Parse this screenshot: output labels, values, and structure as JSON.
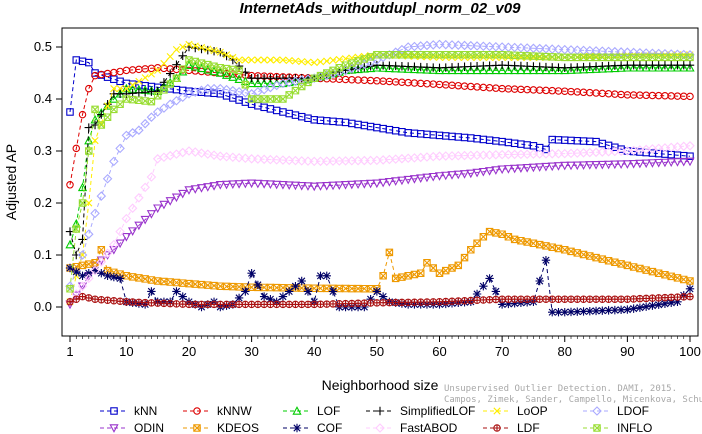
{
  "chart_data": {
    "type": "line",
    "title": "InternetAds_withoutdupl_norm_02_v09",
    "xlabel": "Neighborhood size",
    "ylabel": "Adjusted AP",
    "xlim": [
      1,
      100
    ],
    "ylim": [
      -0.03,
      0.52
    ],
    "xticks": [
      1,
      10,
      20,
      30,
      40,
      50,
      60,
      70,
      80,
      90,
      100
    ],
    "yticks": [
      0.0,
      0.1,
      0.2,
      0.3,
      0.4,
      0.5
    ],
    "ytick_labels": [
      "0.0",
      "0.1",
      "0.2",
      "0.3",
      "0.4",
      "0.5"
    ],
    "grid": false,
    "legend_position": "bottom",
    "series": [
      {
        "name": "kNN",
        "color": "#0000cc",
        "marker": "square",
        "dash": "4,3",
        "points": [
          [
            1,
            0.375
          ],
          [
            2,
            0.475
          ],
          [
            4,
            0.47
          ],
          [
            5,
            0.45
          ],
          [
            10,
            0.43
          ],
          [
            20,
            0.415
          ],
          [
            25,
            0.41
          ],
          [
            30,
            0.39
          ],
          [
            35,
            0.375
          ],
          [
            40,
            0.36
          ],
          [
            45,
            0.355
          ],
          [
            50,
            0.345
          ],
          [
            55,
            0.335
          ],
          [
            60,
            0.33
          ],
          [
            65,
            0.325
          ],
          [
            70,
            0.318
          ],
          [
            75,
            0.31
          ],
          [
            77,
            0.303
          ],
          [
            78,
            0.322
          ],
          [
            85,
            0.318
          ],
          [
            90,
            0.3
          ],
          [
            100,
            0.29
          ]
        ]
      },
      {
        "name": "kNNW",
        "color": "#dd0000",
        "marker": "circle",
        "dash": "4,3",
        "points": [
          [
            1,
            0.235
          ],
          [
            2,
            0.305
          ],
          [
            3,
            0.37
          ],
          [
            4,
            0.42
          ],
          [
            5,
            0.445
          ],
          [
            10,
            0.455
          ],
          [
            15,
            0.46
          ],
          [
            20,
            0.455
          ],
          [
            30,
            0.445
          ],
          [
            40,
            0.44
          ],
          [
            50,
            0.435
          ],
          [
            60,
            0.428
          ],
          [
            70,
            0.42
          ],
          [
            80,
            0.415
          ],
          [
            90,
            0.408
          ],
          [
            100,
            0.405
          ]
        ]
      },
      {
        "name": "LOF",
        "color": "#00cc00",
        "marker": "triangle-up",
        "dash": "4,3",
        "points": [
          [
            1,
            0.12
          ],
          [
            2,
            0.16
          ],
          [
            3,
            0.23
          ],
          [
            4,
            0.32
          ],
          [
            5,
            0.36
          ],
          [
            8,
            0.4
          ],
          [
            10,
            0.42
          ],
          [
            15,
            0.415
          ],
          [
            18,
            0.44
          ],
          [
            20,
            0.465
          ],
          [
            25,
            0.45
          ],
          [
            30,
            0.43
          ],
          [
            35,
            0.43
          ],
          [
            40,
            0.44
          ],
          [
            45,
            0.455
          ],
          [
            50,
            0.46
          ],
          [
            60,
            0.455
          ],
          [
            70,
            0.455
          ],
          [
            80,
            0.455
          ],
          [
            90,
            0.46
          ],
          [
            100,
            0.46
          ]
        ]
      },
      {
        "name": "SimplifiedLOF",
        "color": "#000000",
        "marker": "plus",
        "dash": "4,3",
        "points": [
          [
            1,
            0.145
          ],
          [
            2,
            0.1
          ],
          [
            3,
            0.13
          ],
          [
            4,
            0.345
          ],
          [
            5,
            0.35
          ],
          [
            8,
            0.41
          ],
          [
            10,
            0.41
          ],
          [
            15,
            0.415
          ],
          [
            20,
            0.5
          ],
          [
            25,
            0.49
          ],
          [
            27,
            0.475
          ],
          [
            30,
            0.44
          ],
          [
            40,
            0.44
          ],
          [
            45,
            0.455
          ],
          [
            50,
            0.465
          ],
          [
            60,
            0.46
          ],
          [
            70,
            0.465
          ],
          [
            80,
            0.46
          ],
          [
            90,
            0.465
          ],
          [
            100,
            0.465
          ]
        ]
      },
      {
        "name": "LoOP",
        "color": "#ffee00",
        "marker": "x",
        "dash": "4,3",
        "points": [
          [
            1,
            0.01
          ],
          [
            2,
            0.06
          ],
          [
            3,
            0.1
          ],
          [
            4,
            0.2
          ],
          [
            5,
            0.32
          ],
          [
            8,
            0.42
          ],
          [
            10,
            0.42
          ],
          [
            15,
            0.455
          ],
          [
            18,
            0.495
          ],
          [
            20,
            0.505
          ],
          [
            25,
            0.49
          ],
          [
            28,
            0.475
          ],
          [
            35,
            0.475
          ],
          [
            40,
            0.47
          ],
          [
            50,
            0.485
          ],
          [
            60,
            0.48
          ],
          [
            70,
            0.48
          ],
          [
            80,
            0.48
          ],
          [
            90,
            0.485
          ],
          [
            100,
            0.485
          ]
        ]
      },
      {
        "name": "LDOF",
        "color": "#aaaaff",
        "marker": "diamond",
        "dash": "4,3",
        "points": [
          [
            1,
            0.04
          ],
          [
            3,
            0.1
          ],
          [
            5,
            0.18
          ],
          [
            8,
            0.28
          ],
          [
            10,
            0.33
          ],
          [
            12,
            0.34
          ],
          [
            14,
            0.365
          ],
          [
            15,
            0.375
          ],
          [
            17,
            0.39
          ],
          [
            20,
            0.41
          ],
          [
            23,
            0.42
          ],
          [
            25,
            0.42
          ],
          [
            30,
            0.41
          ],
          [
            35,
            0.43
          ],
          [
            40,
            0.44
          ],
          [
            45,
            0.455
          ],
          [
            50,
            0.475
          ],
          [
            55,
            0.5
          ],
          [
            60,
            0.505
          ],
          [
            70,
            0.5
          ],
          [
            80,
            0.495
          ],
          [
            90,
            0.49
          ],
          [
            100,
            0.485
          ]
        ]
      },
      {
        "name": "ODIN",
        "color": "#9933cc",
        "marker": "triangle-down",
        "dash": "4,3",
        "points": [
          [
            1,
            0.005
          ],
          [
            3,
            0.04
          ],
          [
            5,
            0.08
          ],
          [
            8,
            0.11
          ],
          [
            10,
            0.135
          ],
          [
            15,
            0.19
          ],
          [
            20,
            0.225
          ],
          [
            25,
            0.235
          ],
          [
            30,
            0.238
          ],
          [
            35,
            0.235
          ],
          [
            40,
            0.232
          ],
          [
            45,
            0.235
          ],
          [
            50,
            0.238
          ],
          [
            55,
            0.245
          ],
          [
            60,
            0.252
          ],
          [
            65,
            0.257
          ],
          [
            70,
            0.265
          ],
          [
            80,
            0.272
          ],
          [
            90,
            0.275
          ],
          [
            100,
            0.28
          ]
        ]
      },
      {
        "name": "KDEOS",
        "color": "#ee9900",
        "marker": "square-x",
        "dash": "4,3",
        "points": [
          [
            1,
            0.075
          ],
          [
            5,
            0.085
          ],
          [
            6,
            0.11
          ],
          [
            7,
            0.07
          ],
          [
            10,
            0.06
          ],
          [
            15,
            0.05
          ],
          [
            20,
            0.045
          ],
          [
            25,
            0.04
          ],
          [
            30,
            0.038
          ],
          [
            40,
            0.036
          ],
          [
            50,
            0.035
          ],
          [
            51,
            0.06
          ],
          [
            52,
            0.105
          ],
          [
            53,
            0.055
          ],
          [
            55,
            0.06
          ],
          [
            57,
            0.065
          ],
          [
            58,
            0.085
          ],
          [
            60,
            0.065
          ],
          [
            63,
            0.08
          ],
          [
            65,
            0.11
          ],
          [
            67,
            0.135
          ],
          [
            68,
            0.145
          ],
          [
            70,
            0.14
          ],
          [
            72,
            0.13
          ],
          [
            80,
            0.11
          ],
          [
            90,
            0.08
          ],
          [
            100,
            0.05
          ]
        ]
      },
      {
        "name": "COF",
        "color": "#000066",
        "marker": "asterisk",
        "dash": "4,3",
        "points": [
          [
            1,
            0.075
          ],
          [
            3,
            0.06
          ],
          [
            5,
            0.07
          ],
          [
            7,
            0.06
          ],
          [
            9,
            0.055
          ],
          [
            10,
            0.01
          ],
          [
            13,
            0.005
          ],
          [
            14,
            0.03
          ],
          [
            15,
            0.01
          ],
          [
            17,
            0.01
          ],
          [
            18,
            0.03
          ],
          [
            20,
            0.01
          ],
          [
            22,
            0.0
          ],
          [
            24,
            0.01
          ],
          [
            25,
            0.0
          ],
          [
            27,
            0.005
          ],
          [
            29,
            0.03
          ],
          [
            30,
            0.065
          ],
          [
            32,
            0.02
          ],
          [
            34,
            0.01
          ],
          [
            36,
            0.03
          ],
          [
            38,
            0.05
          ],
          [
            40,
            0.01
          ],
          [
            41,
            0.06
          ],
          [
            42,
            0.06
          ],
          [
            44,
            0.0
          ],
          [
            48,
            0.0
          ],
          [
            50,
            0.03
          ],
          [
            52,
            0.01
          ],
          [
            55,
            0.005
          ],
          [
            60,
            0.005
          ],
          [
            65,
            0.01
          ],
          [
            68,
            0.055
          ],
          [
            70,
            0.005
          ],
          [
            75,
            0.01
          ],
          [
            77,
            0.09
          ],
          [
            78,
            -0.01
          ],
          [
            80,
            -0.01
          ],
          [
            90,
            -0.005
          ],
          [
            98,
            0.01
          ],
          [
            100,
            0.035
          ]
        ]
      },
      {
        "name": "FastABOD",
        "color": "#ffccff",
        "marker": "diamond",
        "dash": "4,3",
        "points": [
          [
            1,
            0.01
          ],
          [
            5,
            0.07
          ],
          [
            8,
            0.12
          ],
          [
            10,
            0.17
          ],
          [
            12,
            0.21
          ],
          [
            14,
            0.25
          ],
          [
            15,
            0.285
          ],
          [
            20,
            0.3
          ],
          [
            25,
            0.29
          ],
          [
            30,
            0.285
          ],
          [
            40,
            0.28
          ],
          [
            50,
            0.282
          ],
          [
            60,
            0.29
          ],
          [
            70,
            0.293
          ],
          [
            80,
            0.295
          ],
          [
            90,
            0.3
          ],
          [
            100,
            0.31
          ]
        ]
      },
      {
        "name": "LDF",
        "color": "#aa1111",
        "marker": "circle-plus",
        "dash": "4,3",
        "points": [
          [
            1,
            0.01
          ],
          [
            3,
            0.02
          ],
          [
            5,
            0.015
          ],
          [
            10,
            0.01
          ],
          [
            20,
            0.005
          ],
          [
            30,
            0.005
          ],
          [
            40,
            0.005
          ],
          [
            50,
            0.008
          ],
          [
            60,
            0.01
          ],
          [
            70,
            0.015
          ],
          [
            80,
            0.015
          ],
          [
            90,
            0.015
          ],
          [
            100,
            0.02
          ]
        ]
      },
      {
        "name": "INFLO",
        "color": "#99dd33",
        "marker": "square-x",
        "dash": "4,3",
        "points": [
          [
            1,
            0.035
          ],
          [
            2,
            0.15
          ],
          [
            3,
            0.2
          ],
          [
            4,
            0.3
          ],
          [
            5,
            0.38
          ],
          [
            6,
            0.35
          ],
          [
            8,
            0.38
          ],
          [
            10,
            0.4
          ],
          [
            14,
            0.395
          ],
          [
            18,
            0.44
          ],
          [
            20,
            0.475
          ],
          [
            25,
            0.46
          ],
          [
            28,
            0.455
          ],
          [
            30,
            0.4
          ],
          [
            35,
            0.4
          ],
          [
            40,
            0.44
          ],
          [
            45,
            0.465
          ],
          [
            50,
            0.485
          ],
          [
            55,
            0.485
          ],
          [
            60,
            0.485
          ],
          [
            70,
            0.485
          ],
          [
            80,
            0.48
          ],
          [
            90,
            0.48
          ],
          [
            100,
            0.48
          ]
        ]
      }
    ]
  },
  "watermark": {
    "line1": "Unsupervised Outlier Detection. DAMI, 2015.",
    "line2": "Campos, Zimek, Sander, Campello, Micenkova, Schubert, Assent, Houle"
  }
}
